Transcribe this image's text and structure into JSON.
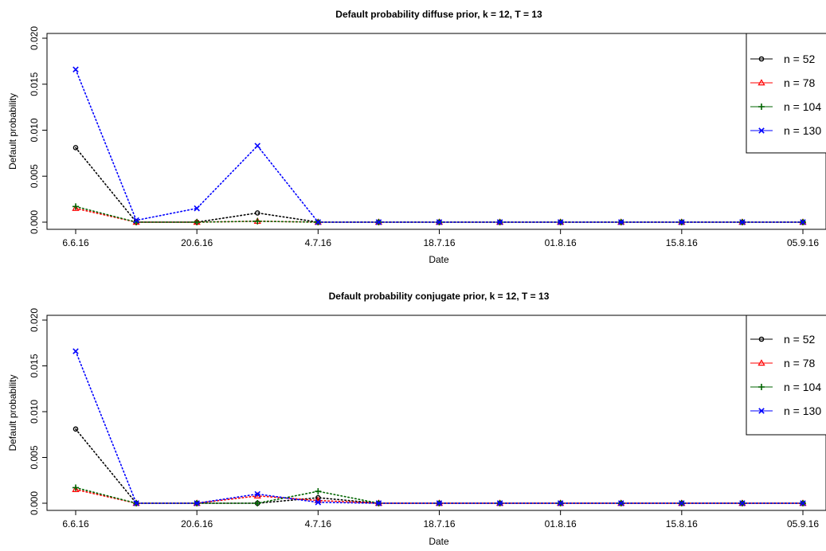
{
  "colors": {
    "n52": "#000000",
    "n78": "#ff0000",
    "n104": "#006400",
    "n130": "#0000ff",
    "axis": "#000000",
    "background": "#ffffff"
  },
  "chart_data": [
    {
      "type": "line",
      "title": "Default probability diffuse prior, k = 12, T = 13",
      "xlabel": "Date",
      "ylabel": "Default probability",
      "ylim": [
        0,
        0.02
      ],
      "yticks": [
        "0.000",
        "0.005",
        "0.010",
        "0.015",
        "0.020"
      ],
      "x": [
        "06.06.16",
        "13.06.16",
        "20.06.16",
        "27.06.16",
        "04.07.16",
        "11.07.16",
        "18.07.16",
        "25.07.16",
        "01.08.16",
        "08.08.16",
        "15.08.16",
        "22.08.16",
        "05.09.16"
      ],
      "xtick_labels": [
        "6.6.16",
        "20.6.16",
        "4.7.16",
        "18.7.16",
        "01.8.16",
        "15.8.16",
        "05.9.16"
      ],
      "grid": false,
      "legend_position": "top-right",
      "series": [
        {
          "name": "n = 52",
          "marker": "circle",
          "values": [
            0.0081,
            0.0,
            0.0,
            0.001,
            0.0,
            0.0,
            0.0,
            0.0,
            0.0,
            0.0,
            0.0,
            0.0,
            0.0
          ]
        },
        {
          "name": "n = 78",
          "marker": "triangle",
          "values": [
            0.0015,
            0.0,
            0.0,
            0.0001,
            0.0,
            0.0,
            0.0,
            0.0,
            0.0,
            0.0,
            0.0,
            0.0,
            0.0
          ]
        },
        {
          "name": "n = 104",
          "marker": "plus",
          "values": [
            0.0017,
            0.0,
            0.0,
            0.0001,
            0.0,
            0.0,
            0.0,
            0.0,
            0.0,
            0.0,
            0.0,
            0.0,
            0.0
          ]
        },
        {
          "name": "n = 130",
          "marker": "x",
          "values": [
            0.0166,
            0.0002,
            0.0015,
            0.0083,
            0.0,
            0.0,
            0.0,
            0.0,
            0.0,
            0.0,
            0.0,
            0.0,
            0.0
          ]
        }
      ]
    },
    {
      "type": "line",
      "title": "Default probability conjugate prior, k = 12, T = 13",
      "xlabel": "Date",
      "ylabel": "Default probability",
      "ylim": [
        0,
        0.02
      ],
      "yticks": [
        "0.000",
        "0.005",
        "0.010",
        "0.015",
        "0.020"
      ],
      "x": [
        "06.06.16",
        "13.06.16",
        "20.06.16",
        "27.06.16",
        "04.07.16",
        "11.07.16",
        "18.07.16",
        "25.07.16",
        "01.08.16",
        "08.08.16",
        "15.08.16",
        "22.08.16",
        "05.09.16"
      ],
      "xtick_labels": [
        "6.6.16",
        "20.6.16",
        "4.7.16",
        "18.7.16",
        "01.8.16",
        "15.8.16",
        "05.9.16"
      ],
      "grid": false,
      "legend_position": "top-right",
      "series": [
        {
          "name": "n = 52",
          "marker": "circle",
          "values": [
            0.0081,
            0.0,
            0.0,
            0.0,
            0.0006,
            0.0,
            0.0,
            0.0,
            0.0,
            0.0,
            0.0,
            0.0,
            0.0
          ]
        },
        {
          "name": "n = 78",
          "marker": "triangle",
          "values": [
            0.0015,
            0.0,
            0.0,
            0.0008,
            0.0003,
            0.0,
            0.0,
            0.0,
            0.0,
            0.0,
            0.0,
            0.0,
            0.0
          ]
        },
        {
          "name": "n = 104",
          "marker": "plus",
          "values": [
            0.0017,
            0.0,
            0.0,
            0.0,
            0.0013,
            0.0,
            0.0,
            0.0,
            0.0,
            0.0,
            0.0,
            0.0,
            0.0
          ]
        },
        {
          "name": "n = 130",
          "marker": "x",
          "values": [
            0.0166,
            0.0,
            0.0,
            0.001,
            0.0001,
            0.0,
            0.0,
            0.0,
            0.0,
            0.0,
            0.0,
            0.0,
            0.0
          ]
        }
      ]
    }
  ]
}
